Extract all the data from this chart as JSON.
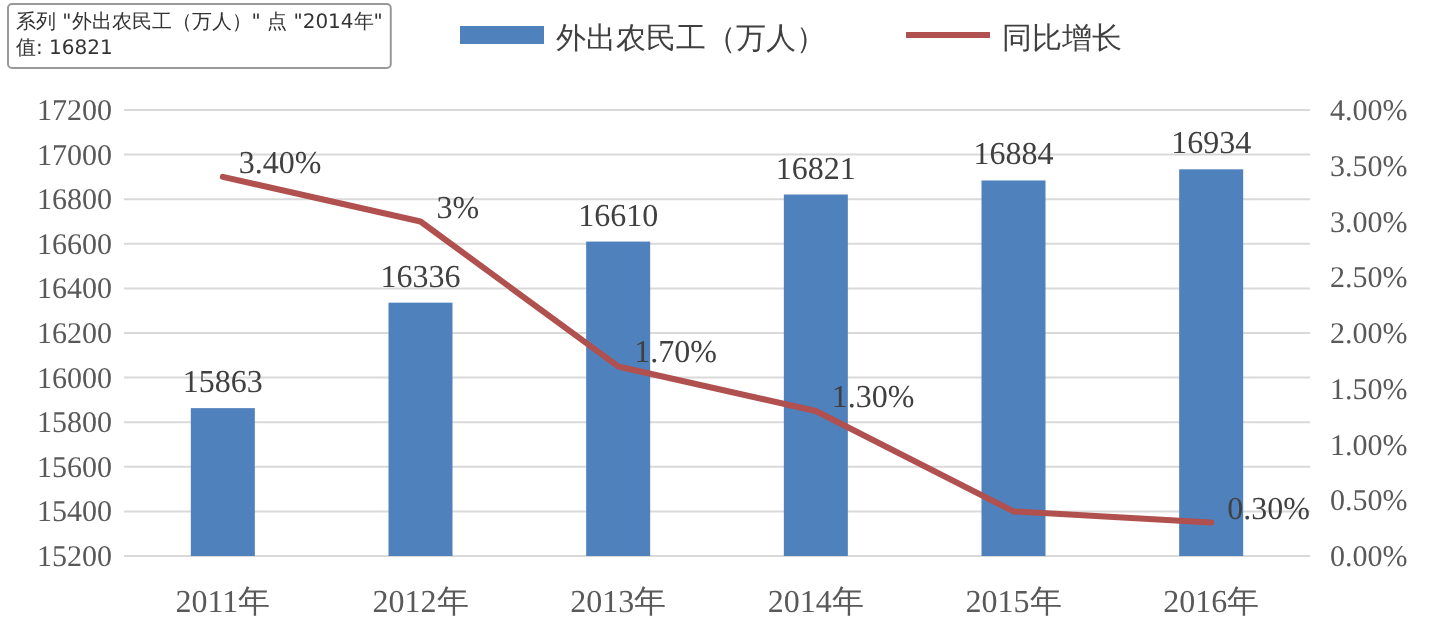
{
  "chart_data": {
    "type": "bar",
    "categories": [
      "2011年",
      "2012年",
      "2013年",
      "2014年",
      "2015年",
      "2016年"
    ],
    "series": [
      {
        "name": "外出农民工（万人）",
        "color": "#4f81bd",
        "values": [
          15863,
          16336,
          16610,
          16821,
          16884,
          16934
        ],
        "value_labels": [
          "15863",
          "16336",
          "16610",
          "16821",
          "16884",
          "16934"
        ]
      },
      {
        "name": "同比增长",
        "type": "line",
        "axis": "y2",
        "color": "#b0504f",
        "values": [
          3.4,
          3.0,
          1.7,
          1.3,
          0.4,
          0.3
        ],
        "value_labels": [
          "3.40%",
          "3%",
          "1.70%",
          "1.30%",
          null,
          "0.30%"
        ]
      }
    ],
    "ylim": [
      15200,
      17200
    ],
    "yticks": [
      15200,
      15400,
      15600,
      15800,
      16000,
      16200,
      16400,
      16600,
      16800,
      17000,
      17200
    ],
    "y2lim": [
      0,
      4
    ],
    "y2ticks": [
      {
        "value": 0,
        "label": "0.00%"
      },
      {
        "value": 0.5,
        "label": "0.50%"
      },
      {
        "value": 1,
        "label": "1.00%"
      },
      {
        "value": 1.5,
        "label": "1.50%"
      },
      {
        "value": 2,
        "label": "2.00%"
      },
      {
        "value": 2.5,
        "label": "2.50%"
      },
      {
        "value": 3,
        "label": "3.00%"
      },
      {
        "value": 3.5,
        "label": "3.50%"
      },
      {
        "value": 4,
        "label": "4.00%"
      }
    ],
    "grid": "y",
    "legend": "top",
    "annotations": [
      "系列 \"外出农民工（万人）\" 点 \"2014年\"",
      "值: 16821"
    ]
  }
}
